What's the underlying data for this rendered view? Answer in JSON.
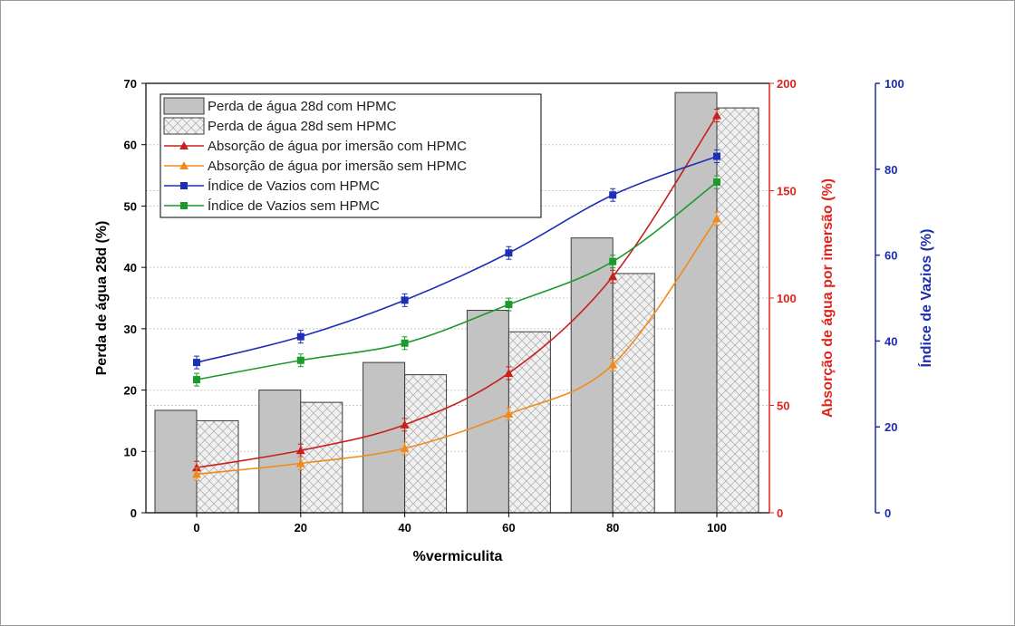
{
  "chart_data": {
    "type": "bar",
    "xlabel": "%vermiculita",
    "categories": [
      "0",
      "20",
      "40",
      "60",
      "80",
      "100"
    ],
    "y_left": {
      "label": "Perda de água 28d (%)",
      "lim": [
        0,
        70
      ],
      "ticks": [
        0,
        10,
        20,
        30,
        40,
        50,
        60,
        70
      ],
      "color": "#000000"
    },
    "y_right1": {
      "label": "Absorção de água por imersão (%)",
      "lim": [
        0,
        200
      ],
      "ticks": [
        0,
        50,
        100,
        150,
        200
      ],
      "color": "#e0241b"
    },
    "y_right2": {
      "label": "Índice de Vazios (%)",
      "lim": [
        0,
        100
      ],
      "ticks": [
        0,
        20,
        40,
        60,
        80,
        100
      ],
      "color": "#1c2cae"
    },
    "series": [
      {
        "name": "Perda de água 28d com HPMC",
        "kind": "bar",
        "axis": "left",
        "color": "#c3c3c3",
        "values": [
          16.7,
          20.0,
          24.5,
          33.0,
          44.8,
          68.5
        ]
      },
      {
        "name": "Perda de água 28d sem HPMC",
        "kind": "bar-hatched",
        "axis": "left",
        "color": "#e9e9e9",
        "values": [
          15.0,
          18.0,
          22.5,
          29.5,
          39.0,
          66.0
        ]
      },
      {
        "name": "Absorção de água por imersão com HPMC",
        "kind": "line",
        "marker": "triangle",
        "axis": "right1",
        "color": "#c8201c",
        "values": [
          21,
          29,
          41,
          65,
          110,
          185
        ]
      },
      {
        "name": "Absorção de água por imersão sem HPMC",
        "kind": "line",
        "marker": "triangle",
        "axis": "right1",
        "color": "#f08a1c",
        "values": [
          18,
          23,
          30,
          46,
          69,
          137
        ]
      },
      {
        "name": "Índice de Vazios com HPMC",
        "kind": "line",
        "marker": "square",
        "axis": "right2",
        "color": "#1c2fb5",
        "values": [
          35,
          41,
          49.5,
          60.5,
          74,
          83
        ]
      },
      {
        "name": "Índice de Vazios sem HPMC",
        "kind": "line",
        "marker": "square",
        "axis": "right2",
        "color": "#1d9a2c",
        "values": [
          31,
          35.5,
          39.5,
          48.5,
          58.5,
          77
        ]
      }
    ],
    "grid": "dotted-horizontal",
    "legend_position": "top-left"
  }
}
